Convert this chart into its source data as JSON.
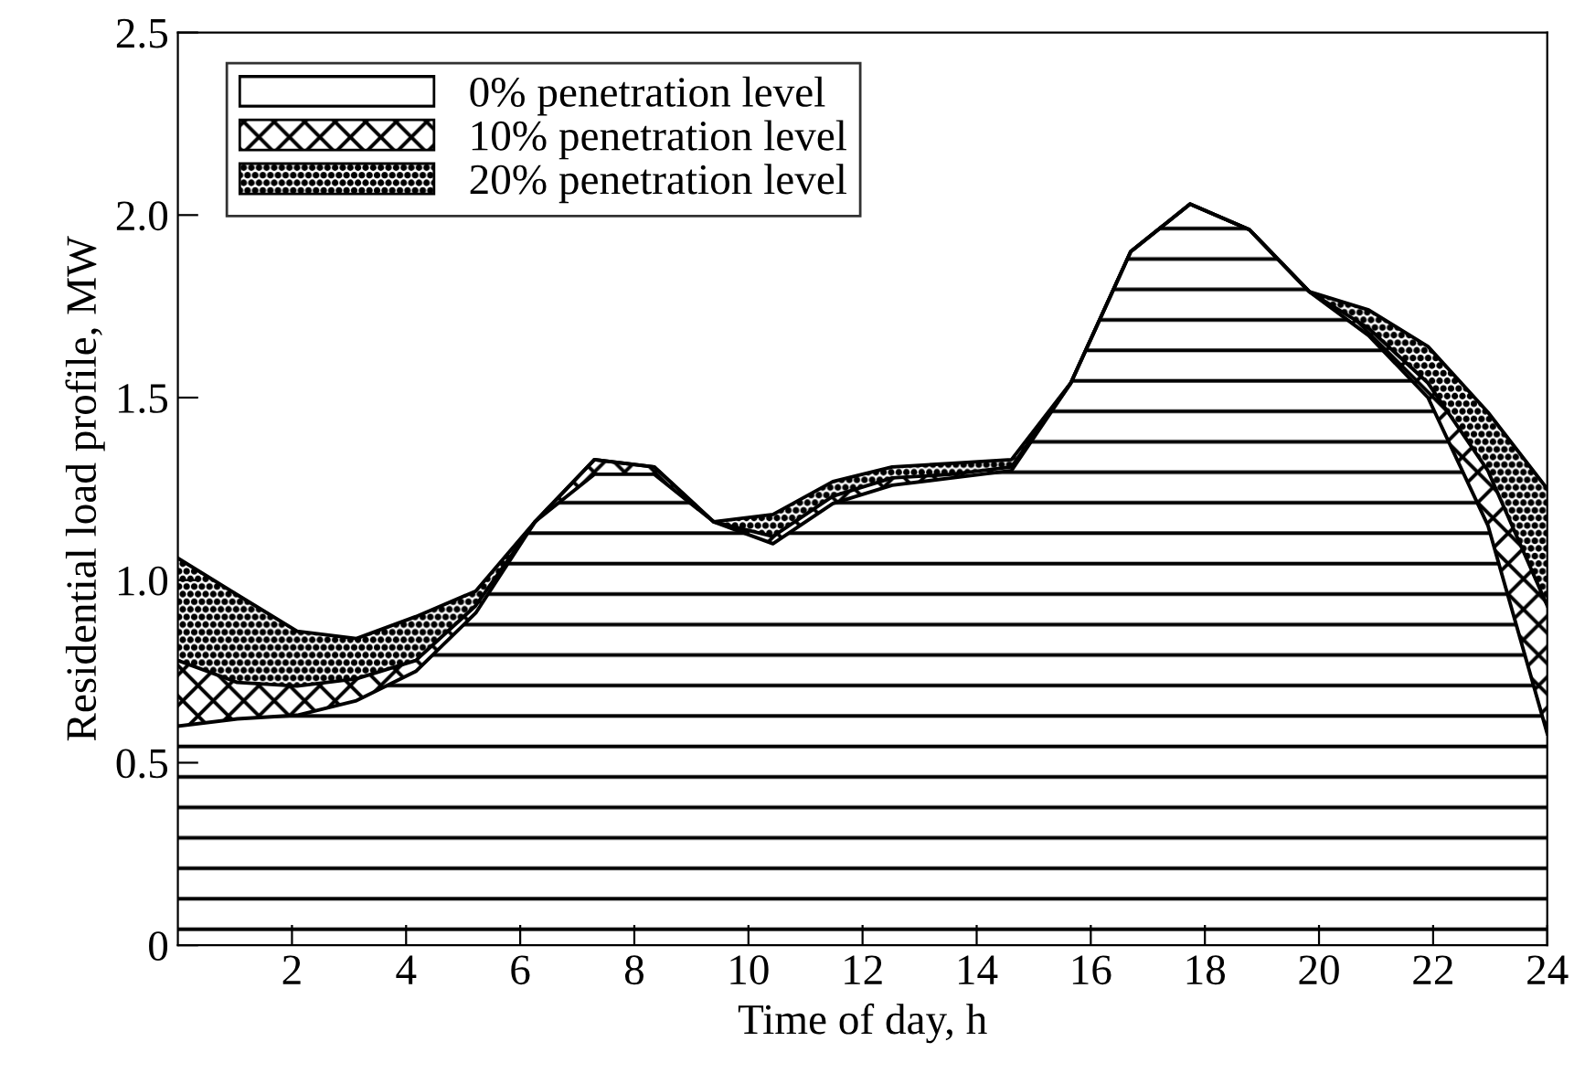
{
  "chart_data": {
    "type": "area",
    "xlabel": "Time of day, h",
    "ylabel": "Residential load profile, MW",
    "x": [
      0,
      1.04,
      2.09,
      3.13,
      4.17,
      5.22,
      6.26,
      7.3,
      8.35,
      9.39,
      10.43,
      11.48,
      12.52,
      13.57,
      14.61,
      15.65,
      16.7,
      17.74,
      18.78,
      19.83,
      20.87,
      21.91,
      22.96,
      24
    ],
    "series": [
      {
        "name": "0% penetration level",
        "color": "#000000",
        "values": [
          0.6,
          0.62,
          0.63,
          0.67,
          0.75,
          0.91,
          1.16,
          1.29,
          1.29,
          1.16,
          1.1,
          1.21,
          1.26,
          1.28,
          1.3,
          1.54,
          1.9,
          2.03,
          1.96,
          1.79,
          1.67,
          1.5,
          1.15,
          0.58
        ]
      },
      {
        "name": "10% penetration level",
        "color": "#000000",
        "values": [
          0.78,
          0.72,
          0.71,
          0.73,
          0.78,
          0.93,
          1.16,
          1.33,
          1.31,
          1.16,
          1.12,
          1.23,
          1.28,
          1.29,
          1.31,
          1.54,
          1.9,
          2.03,
          1.96,
          1.79,
          1.69,
          1.54,
          1.3,
          0.93
        ]
      },
      {
        "name": "20% penetration level",
        "color": "#000000",
        "values": [
          1.06,
          0.96,
          0.86,
          0.84,
          0.9,
          0.97,
          1.16,
          1.33,
          1.31,
          1.16,
          1.18,
          1.27,
          1.31,
          1.32,
          1.33,
          1.54,
          1.9,
          2.03,
          1.96,
          1.79,
          1.74,
          1.64,
          1.46,
          1.25
        ]
      }
    ],
    "xlim": [
      0,
      24
    ],
    "xticks": [
      2,
      4,
      6,
      8,
      10,
      12,
      14,
      16,
      18,
      20,
      22,
      24
    ],
    "ylim": [
      0,
      2.5
    ],
    "yticks": [
      {
        "value": 0,
        "label": "0"
      },
      {
        "value": 0.5,
        "label": "0.5"
      },
      {
        "value": 1,
        "label": "1.0"
      },
      {
        "value": 1.5,
        "label": "1.5"
      },
      {
        "value": 2,
        "label": "2.0"
      },
      {
        "value": 2.5,
        "label": "2.5"
      }
    ],
    "grid": false,
    "legend": "top left"
  }
}
